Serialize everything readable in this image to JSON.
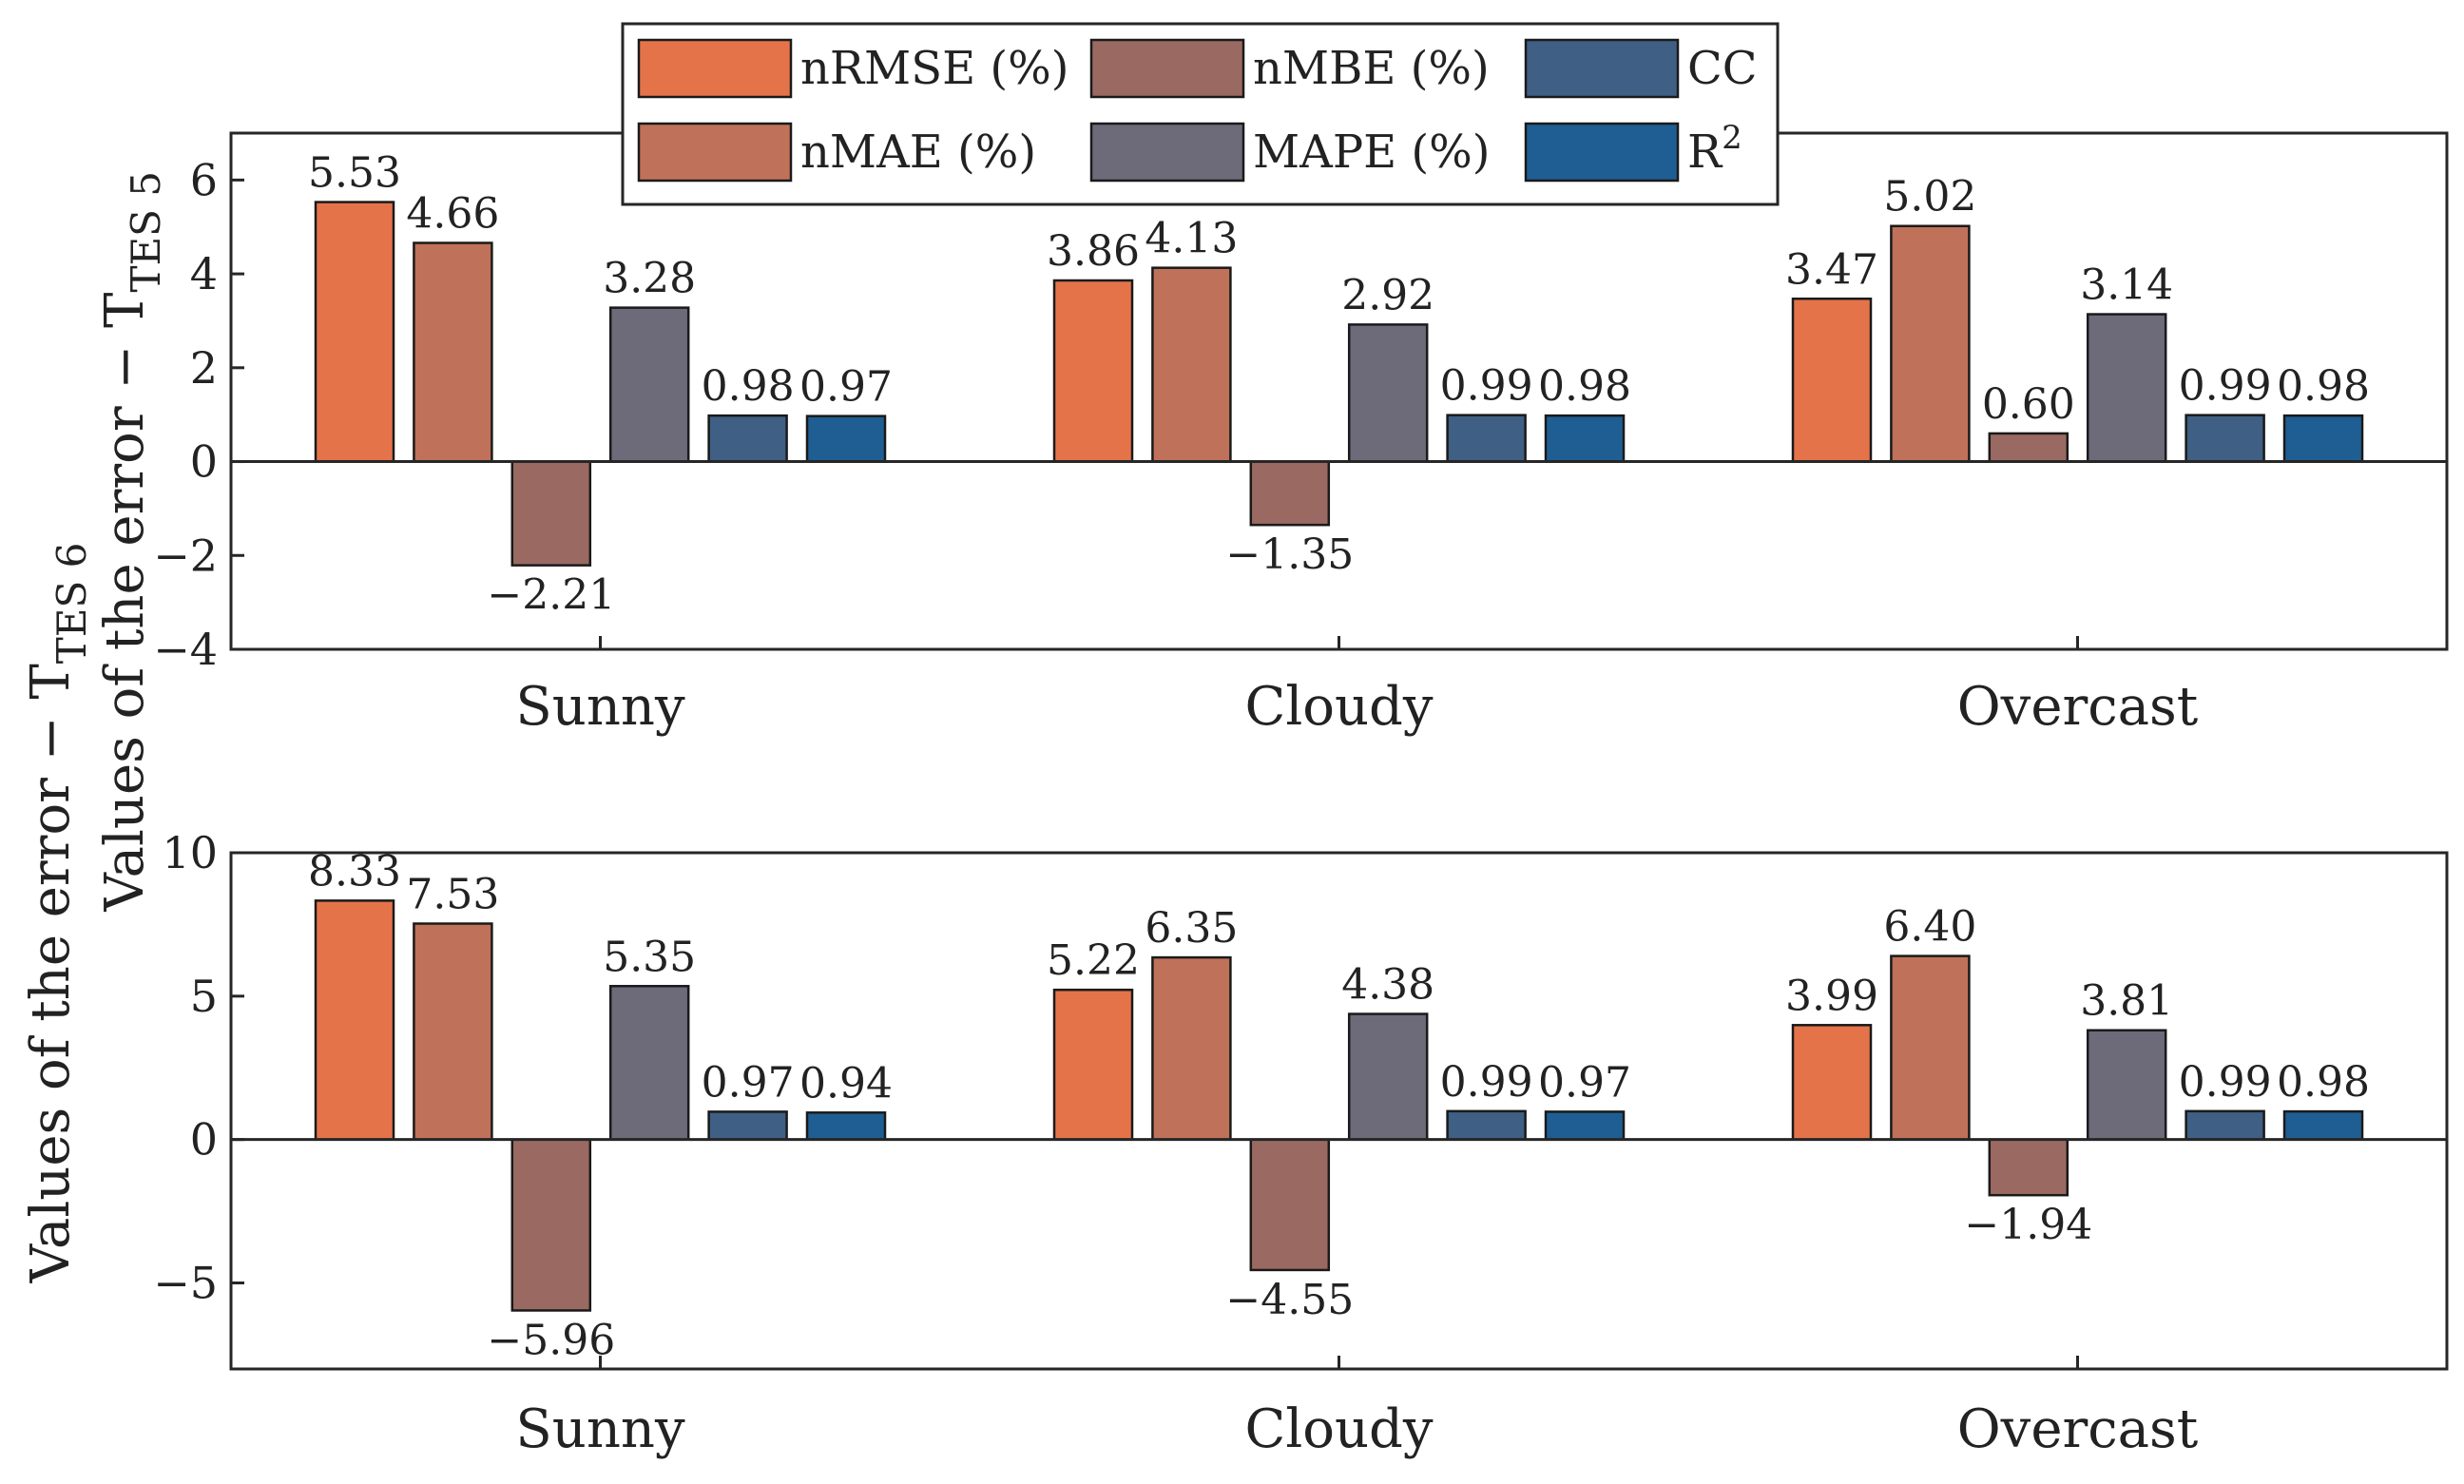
{
  "legend": {
    "items": [
      {
        "name": "nRMSE (%)",
        "color": "#e5734a"
      },
      {
        "name": "nMBE (%)",
        "color": "#9a6a62"
      },
      {
        "name": "CC",
        "color": "#3f5f84"
      },
      {
        "name": "nMAE (%)",
        "color": "#c0715a"
      },
      {
        "name": "MAPE (%)",
        "color": "#6d6a7a"
      },
      {
        "name": "R",
        "sup": "2",
        "color": "#1f5e92"
      }
    ]
  },
  "chart_data": [
    {
      "type": "bar",
      "ylabel": "Values of the error − T",
      "ylabel_sub": "TES 5",
      "categories": [
        "Sunny",
        "Cloudy",
        "Overcast"
      ],
      "ylim": [
        -4,
        7
      ],
      "yticks": [
        -4,
        -2,
        0,
        2,
        4,
        6
      ],
      "ytick_labels": [
        "−4",
        "−2",
        "0",
        "2",
        "4",
        "6"
      ],
      "series": [
        {
          "name": "nRMSE (%)",
          "color": "#e5734a",
          "values": [
            5.53,
            3.86,
            3.47
          ],
          "labels": [
            "5.53",
            "3.86",
            "3.47"
          ]
        },
        {
          "name": "nMAE (%)",
          "color": "#c0715a",
          "values": [
            4.66,
            4.13,
            5.02
          ],
          "labels": [
            "4.66",
            "4.13",
            "5.02"
          ]
        },
        {
          "name": "nMBE (%)",
          "color": "#9a6a62",
          "values": [
            -2.21,
            -1.35,
            0.6
          ],
          "labels": [
            "−2.21",
            "−1.35",
            "0.60"
          ]
        },
        {
          "name": "MAPE (%)",
          "color": "#6d6a7a",
          "values": [
            3.28,
            2.92,
            3.14
          ],
          "labels": [
            "3.28",
            "2.92",
            "3.14"
          ]
        },
        {
          "name": "CC",
          "color": "#3f5f84",
          "values": [
            0.98,
            0.99,
            0.99
          ],
          "labels": [
            "0.98",
            "0.99",
            "0.99"
          ]
        },
        {
          "name": "R2",
          "color": "#1f5e92",
          "values": [
            0.97,
            0.98,
            0.98
          ],
          "labels": [
            "0.97",
            "0.98",
            "0.98"
          ]
        }
      ]
    },
    {
      "type": "bar",
      "ylabel": "Values of the error − T",
      "ylabel_sub": "TES 6",
      "categories": [
        "Sunny",
        "Cloudy",
        "Overcast"
      ],
      "ylim": [
        -8,
        10
      ],
      "yticks": [
        -5,
        0,
        5,
        10
      ],
      "ytick_labels": [
        "−5",
        "0",
        "5",
        "10"
      ],
      "series": [
        {
          "name": "nRMSE (%)",
          "color": "#e5734a",
          "values": [
            8.33,
            5.22,
            3.99
          ],
          "labels": [
            "8.33",
            "5.22",
            "3.99"
          ]
        },
        {
          "name": "nMAE (%)",
          "color": "#c0715a",
          "values": [
            7.53,
            6.35,
            6.4
          ],
          "labels": [
            "7.53",
            "6.35",
            "6.40"
          ]
        },
        {
          "name": "nMBE (%)",
          "color": "#9a6a62",
          "values": [
            -5.96,
            -4.55,
            -1.94
          ],
          "labels": [
            "−5.96",
            "−4.55",
            "−1.94"
          ]
        },
        {
          "name": "MAPE (%)",
          "color": "#6d6a7a",
          "values": [
            5.35,
            4.38,
            3.81
          ],
          "labels": [
            "5.35",
            "4.38",
            "3.81"
          ]
        },
        {
          "name": "CC",
          "color": "#3f5f84",
          "values": [
            0.97,
            0.99,
            0.99
          ],
          "labels": [
            "0.97",
            "0.99",
            "0.99"
          ]
        },
        {
          "name": "R2",
          "color": "#1f5e92",
          "values": [
            0.94,
            0.97,
            0.98
          ],
          "labels": [
            "0.94",
            "0.97",
            "0.98"
          ]
        }
      ]
    }
  ]
}
